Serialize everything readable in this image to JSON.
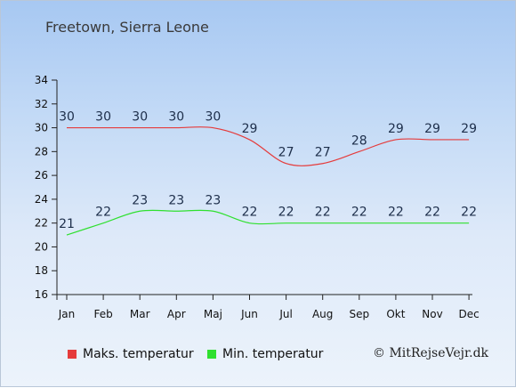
{
  "title": "Freetown, Sierra Leone",
  "copyright": "© MitRejseVejr.dk",
  "colors": {
    "max": "#e53b3b",
    "min": "#2fe02f"
  },
  "chart_data": {
    "type": "line",
    "categories": [
      "Jan",
      "Feb",
      "Mar",
      "Apr",
      "Maj",
      "Jun",
      "Jul",
      "Aug",
      "Sep",
      "Okt",
      "Nov",
      "Dec"
    ],
    "ylim": [
      16,
      34
    ],
    "yticks": [
      16,
      18,
      20,
      22,
      24,
      26,
      28,
      30,
      32,
      34
    ],
    "grid": false,
    "legend_position": "bottom",
    "series": [
      {
        "name": "Maks. temperatur",
        "color": "#e53b3b",
        "values": [
          30,
          30,
          30,
          30,
          30,
          29,
          27,
          27,
          28,
          29,
          29,
          29
        ]
      },
      {
        "name": "Min. temperatur",
        "color": "#2fe02f",
        "values": [
          21,
          22,
          23,
          23,
          23,
          22,
          22,
          22,
          22,
          22,
          22,
          22
        ]
      }
    ]
  }
}
